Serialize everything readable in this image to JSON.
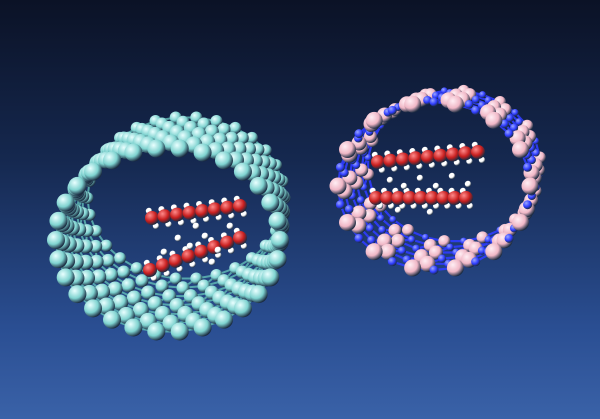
{
  "scene": {
    "description_key": "two-nanotube-renderings",
    "colors": {
      "background_top": "#0b1226",
      "background_bottom": "#3a62a8",
      "carbon_tube_atom": "#7fd3d0",
      "carbon_tube_bond": "#5fb7b4",
      "bn_tube_boron": "#f0b7c6",
      "bn_tube_nitrogen": "#2e3cff",
      "oxygen": "#c81e1e",
      "hydrogen": "#ffffff"
    },
    "left_tube": {
      "name": "carbon-nanotube",
      "water_chains": 2
    },
    "right_tube": {
      "name": "boron-nitride-nanotube",
      "water_chains": 2
    }
  }
}
